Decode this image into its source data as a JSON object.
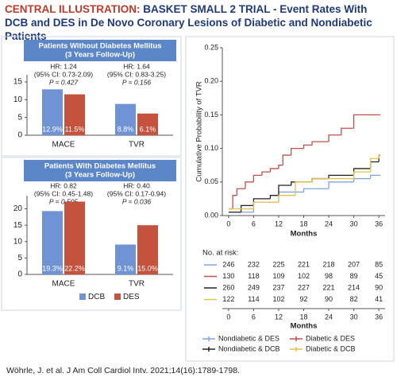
{
  "title_label": "CENTRAL ILLUSTRATION:",
  "title": "BASKET SMALL 2 TRIAL - Event Rates With DCB and DES in De Novo Coronary Lesions of Diabetic and Nondiabetic Patients",
  "citation": "Wöhrle, J. et al. J Am Coll Cardiol Intv. 2021;14(16):1789-1798.",
  "chart_data": [
    {
      "type": "bar",
      "title": "Patients Without Diabetes Mellitus",
      "subtitle": "(3 Years Follow-Up)",
      "header_color": "#5b86c8",
      "categories": [
        "MACE",
        "TVR"
      ],
      "annotations": [
        [
          "HR: 1.24",
          "(95% CI: 0.73-2.09)",
          "P = 0.427"
        ],
        [
          "HR: 1.64",
          "(95% CI: 0.83-3.25)",
          "P = 0.156"
        ]
      ],
      "series": [
        {
          "color": "#6f93d3",
          "values": [
            12.9,
            8.8
          ],
          "value_labels": [
            "12.9%",
            "8.8%"
          ]
        },
        {
          "color": "#c4523d",
          "values": [
            11.5,
            6.1
          ],
          "value_labels": [
            "11.5%",
            "6.1%"
          ]
        }
      ],
      "ylim": [
        0,
        17
      ],
      "yticks": [
        0,
        5,
        10,
        15
      ]
    },
    {
      "type": "bar",
      "title": "Patients With Diabetes Mellitus",
      "subtitle": "(3 Years Follow-Up)",
      "header_color": "#5b86c8",
      "categories": [
        "MACE",
        "TVR"
      ],
      "annotations": [
        [
          "HR: 0.82",
          "(95% CI: 0.45-1.48)",
          "P = 0.505"
        ],
        [
          "HR: 0.40",
          "(95% CI: 0.17-0.94)",
          "P = 0.036"
        ]
      ],
      "series": [
        {
          "name": "DCB",
          "color": "#6f93d3",
          "values": [
            19.3,
            9.1
          ],
          "value_labels": [
            "19.3%",
            "9.1%"
          ]
        },
        {
          "name": "DES",
          "color": "#c4523d",
          "values": [
            22.2,
            15.0
          ],
          "value_labels": [
            "22.2%",
            "15.0%"
          ]
        }
      ],
      "ylim": [
        0,
        24
      ],
      "yticks": [
        0,
        5,
        10,
        15,
        20
      ]
    },
    {
      "type": "step",
      "xlabel": "Months",
      "ylabel": "Cumulative Probability of TVR",
      "xlim": [
        -1.5,
        37.5
      ],
      "xticks": [
        0,
        6,
        12,
        18,
        24,
        30,
        36
      ],
      "ylim": [
        0,
        0.25
      ],
      "yticks": [
        {
          "value": 0,
          "label": "0.00"
        },
        {
          "value": 0.05,
          "label": "0.05"
        },
        {
          "value": 0.1,
          "label": "0.10"
        },
        {
          "value": 0.15,
          "label": "0.15"
        },
        {
          "value": 0.2,
          "label": "0.20"
        },
        {
          "value": 0.25,
          "label": "0.25"
        }
      ],
      "series": [
        {
          "name": "Nondiabetic & DES",
          "color": "#7ea6e0",
          "x": [
            0,
            6,
            12,
            18,
            24,
            30,
            34,
            36
          ],
          "values": [
            0.005,
            0.02,
            0.035,
            0.04,
            0.05,
            0.055,
            0.06,
            0.06
          ]
        },
        {
          "name": "Diabetic & DES",
          "color": "#c0504d",
          "x": [
            0,
            1,
            2,
            4,
            6,
            8,
            10,
            12,
            13,
            15,
            18,
            20,
            24,
            27,
            30,
            36
          ],
          "values": [
            0.01,
            0.03,
            0.04,
            0.05,
            0.06,
            0.065,
            0.07,
            0.075,
            0.09,
            0.1,
            0.105,
            0.11,
            0.12,
            0.13,
            0.15,
            0.15
          ]
        },
        {
          "name": "Nondiabetic & DCB",
          "color": "#222222",
          "x": [
            0,
            3,
            6,
            10,
            12,
            15,
            20,
            24,
            30,
            34,
            36
          ],
          "values": [
            0.005,
            0.015,
            0.025,
            0.03,
            0.045,
            0.05,
            0.055,
            0.06,
            0.07,
            0.08,
            0.09
          ]
        },
        {
          "name": "Diabetic & DCB",
          "color": "#e5c04a",
          "x": [
            0,
            6,
            12,
            16,
            20,
            24,
            30,
            34,
            36
          ],
          "values": [
            0.01,
            0.02,
            0.03,
            0.05,
            0.055,
            0.055,
            0.065,
            0.085,
            0.09
          ]
        }
      ],
      "risk_table": {
        "label": "No. at risk:",
        "rows": [
          [
            246,
            232,
            225,
            221,
            218,
            207,
            85
          ],
          [
            130,
            118,
            109,
            102,
            98,
            89,
            45
          ],
          [
            260,
            249,
            237,
            227,
            221,
            214,
            90
          ],
          [
            122,
            114,
            102,
            92,
            90,
            82,
            41
          ]
        ]
      }
    }
  ]
}
